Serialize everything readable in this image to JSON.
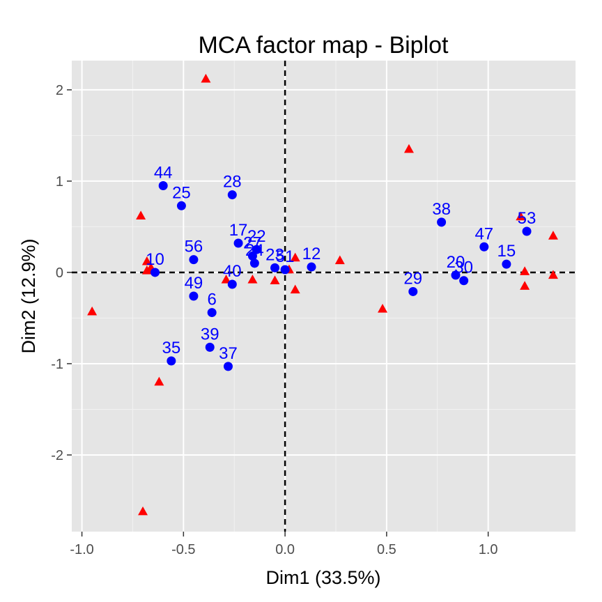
{
  "chart_data": {
    "type": "scatter",
    "title": "MCA factor map - Biplot",
    "xlabel": "Dim1 (33.5%)",
    "ylabel": "Dim2 (12.9%)",
    "xlim": [
      -1.05,
      1.43
    ],
    "ylim": [
      -2.84,
      2.32
    ],
    "xticks": [
      {
        "value": -1.0,
        "label": "-1.0"
      },
      {
        "value": -0.5,
        "label": "-0.5"
      },
      {
        "value": 0.0,
        "label": "0.0"
      },
      {
        "value": 0.5,
        "label": "0.5"
      },
      {
        "value": 1.0,
        "label": "1.0"
      }
    ],
    "yticks": [
      {
        "value": -2,
        "label": "-2"
      },
      {
        "value": -1,
        "label": "-1"
      },
      {
        "value": 0,
        "label": "0"
      },
      {
        "value": 1,
        "label": "1"
      },
      {
        "value": 2,
        "label": "2"
      }
    ],
    "grid": true,
    "reference_lines": {
      "x": 0,
      "y": 0,
      "style": "dashed"
    },
    "colors": {
      "panel": "#e5e5e5",
      "grid_major": "#ffffff",
      "individuals": "#0000ff",
      "variables": "#ff0000",
      "ref_line": "#000000"
    },
    "series": [
      {
        "marker": "circle",
        "color": "#0000ff",
        "points": [
          {
            "label": "44",
            "x": -0.6,
            "y": 0.95
          },
          {
            "label": "25",
            "x": -0.51,
            "y": 0.73
          },
          {
            "label": "28",
            "x": -0.26,
            "y": 0.85
          },
          {
            "label": "10",
            "x": -0.64,
            "y": 0.0
          },
          {
            "label": "56",
            "x": -0.45,
            "y": 0.14
          },
          {
            "label": "17",
            "x": -0.23,
            "y": 0.32
          },
          {
            "label": "22",
            "x": -0.14,
            "y": 0.25
          },
          {
            "label": "27",
            "x": -0.16,
            "y": 0.18
          },
          {
            "label": "24",
            "x": -0.15,
            "y": 0.1
          },
          {
            "label": "23",
            "x": -0.05,
            "y": 0.05
          },
          {
            "label": "51",
            "x": 0.0,
            "y": 0.03
          },
          {
            "label": "12",
            "x": 0.13,
            "y": 0.06
          },
          {
            "label": "40",
            "x": -0.26,
            "y": -0.13
          },
          {
            "label": "49",
            "x": -0.45,
            "y": -0.26
          },
          {
            "label": "6",
            "x": -0.36,
            "y": -0.44
          },
          {
            "label": "39",
            "x": -0.37,
            "y": -0.82
          },
          {
            "label": "37",
            "x": -0.28,
            "y": -1.03
          },
          {
            "label": "35",
            "x": -0.56,
            "y": -0.97
          },
          {
            "label": "38",
            "x": 0.77,
            "y": 0.55
          },
          {
            "label": "47",
            "x": 0.98,
            "y": 0.28
          },
          {
            "label": "53",
            "x": 1.19,
            "y": 0.45
          },
          {
            "label": "15",
            "x": 1.09,
            "y": 0.09
          },
          {
            "label": "29",
            "x": 0.63,
            "y": -0.21
          },
          {
            "label": "20",
            "x": 0.84,
            "y": -0.03
          },
          {
            "label": "30",
            "x": 0.88,
            "y": -0.09
          }
        ]
      },
      {
        "marker": "triangle",
        "color": "#ff0000",
        "points": [
          {
            "x": -0.39,
            "y": 2.12
          },
          {
            "x": 0.61,
            "y": 1.35
          },
          {
            "x": -0.71,
            "y": 0.62
          },
          {
            "x": -0.68,
            "y": 0.12
          },
          {
            "x": -0.68,
            "y": 0.02
          },
          {
            "x": -0.66,
            "y": 0.05
          },
          {
            "x": -0.95,
            "y": -0.43
          },
          {
            "x": -0.62,
            "y": -1.2
          },
          {
            "x": -0.7,
            "y": -2.62
          },
          {
            "x": -0.29,
            "y": -0.08
          },
          {
            "x": -0.16,
            "y": -0.08
          },
          {
            "x": -0.05,
            "y": -0.09
          },
          {
            "x": 0.02,
            "y": 0.03
          },
          {
            "x": 0.05,
            "y": 0.16
          },
          {
            "x": 0.05,
            "y": -0.19
          },
          {
            "x": 0.27,
            "y": 0.13
          },
          {
            "x": 0.48,
            "y": -0.4
          },
          {
            "x": 1.16,
            "y": 0.61
          },
          {
            "x": 1.18,
            "y": 0.01
          },
          {
            "x": 1.18,
            "y": -0.15
          },
          {
            "x": 1.32,
            "y": 0.4
          },
          {
            "x": 1.32,
            "y": -0.03
          }
        ]
      }
    ]
  }
}
